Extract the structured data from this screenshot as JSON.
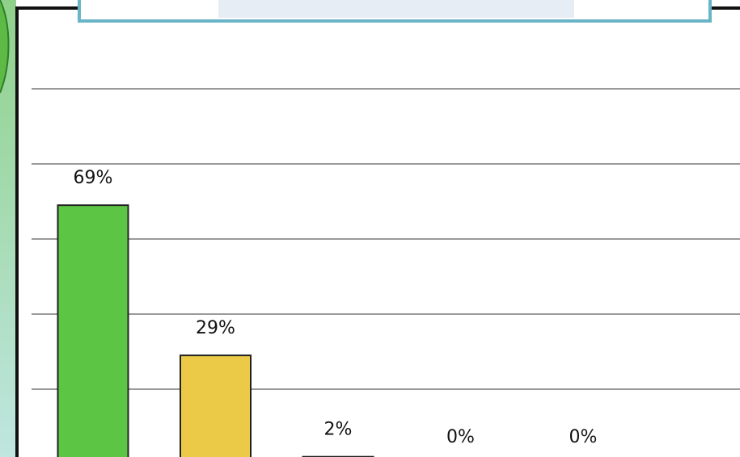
{
  "chart_data": {
    "type": "bar",
    "categories": [
      null,
      null,
      null,
      null,
      null
    ],
    "values": [
      69,
      29,
      2,
      0,
      0
    ],
    "value_labels": [
      "69%",
      "29%",
      "2%",
      "0%",
      "0%"
    ],
    "colors": [
      "#5dc544",
      "#ebca48",
      "#a0622a",
      "#4a7fc0",
      "#c04a4a"
    ],
    "ylim": [
      0,
      120
    ],
    "yticks": [
      0,
      20,
      40,
      60,
      80,
      100
    ],
    "grid": true
  }
}
